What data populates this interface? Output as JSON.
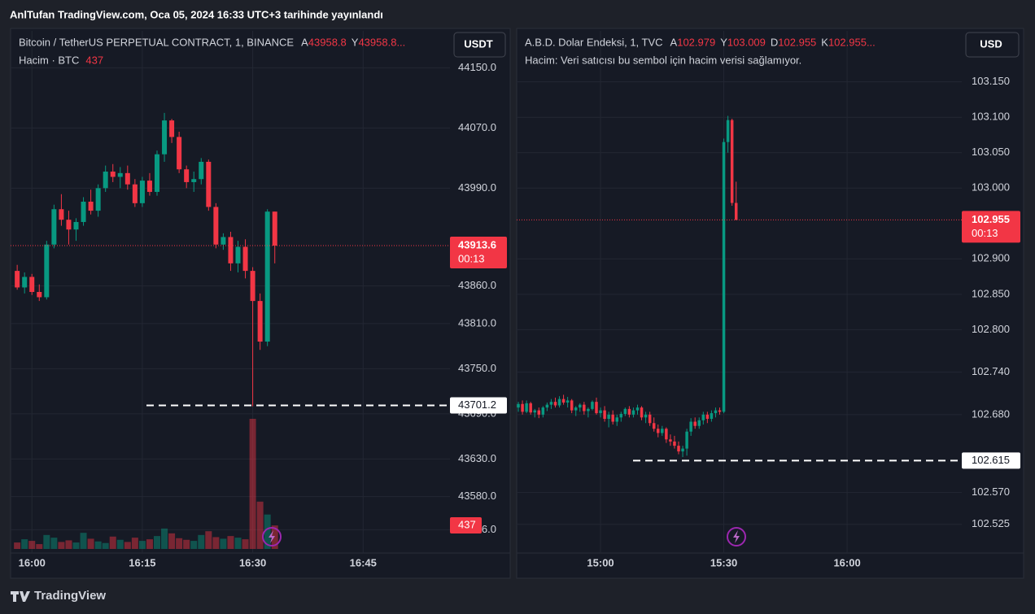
{
  "header": {
    "title": "AnlTufan TradingView.com, Oca 05, 2024 16:33 UTC+3 tarihinde yayınlandı"
  },
  "footer": {
    "brand": "TradingView"
  },
  "chart_data": [
    {
      "type": "candlestick",
      "title": "Bitcoin / TetherUS PERPETUAL CONTRACT, 1, BINANCE",
      "ohlc_legend": [
        {
          "label": "A",
          "value": "43958.8"
        },
        {
          "label": "Y",
          "value": "43958.8..."
        }
      ],
      "volume_label": "Hacim · BTC",
      "currency": "USDT",
      "up_color": "#089981",
      "down_color": "#f23645",
      "grid": true,
      "x": [
        958,
        959,
        960,
        961,
        962,
        963,
        964,
        965,
        966,
        967,
        968,
        969,
        970,
        971,
        972,
        973,
        974,
        975,
        976,
        977,
        978,
        979,
        980,
        981,
        982,
        983,
        984,
        985,
        986,
        987,
        988,
        989,
        990,
        991,
        992,
        993
      ],
      "open": [
        43880,
        43858,
        43872,
        43852,
        43845,
        43915,
        43962,
        43948,
        43935,
        43945,
        43972,
        43960,
        43990,
        44012,
        44005,
        44010,
        43995,
        43970,
        44000,
        43985,
        44035,
        44080,
        44058,
        44015,
        43998,
        44002,
        44025,
        43965,
        43915,
        43925,
        43890,
        43912,
        43880,
        43840,
        43786,
        43958.8
      ],
      "high": [
        43888,
        43878,
        43876,
        43862,
        43920,
        43968,
        43982,
        43960,
        43950,
        43978,
        43988,
        43995,
        44020,
        44022,
        44018,
        44020,
        44002,
        44005,
        44010,
        44040,
        44090,
        44082,
        44065,
        44020,
        44012,
        44030,
        44028,
        43970,
        43930,
        43932,
        43920,
        43922,
        43885,
        43850,
        43962,
        43958.8
      ],
      "low": [
        43855,
        43850,
        43848,
        43840,
        43842,
        43910,
        43940,
        43915,
        43920,
        43940,
        43955,
        43952,
        43985,
        43998,
        43990,
        43988,
        43965,
        43965,
        43980,
        43980,
        44025,
        44050,
        44010,
        43990,
        43985,
        43995,
        43960,
        43910,
        43908,
        43880,
        43878,
        43870,
        43700,
        43775,
        43780,
        43890
      ],
      "close": [
        43858,
        43872,
        43852,
        43845,
        43915,
        43962,
        43948,
        43935,
        43945,
        43972,
        43960,
        43990,
        44012,
        44005,
        44010,
        43995,
        43970,
        44000,
        43985,
        44035,
        44080,
        44058,
        44015,
        43998,
        44002,
        44025,
        43965,
        43915,
        43925,
        43890,
        43912,
        43880,
        43840,
        43786,
        43958.8,
        43913.6
      ],
      "volume": [
        120,
        180,
        150,
        90,
        260,
        210,
        130,
        160,
        120,
        300,
        190,
        140,
        110,
        230,
        170,
        130,
        210,
        150,
        180,
        240,
        380,
        290,
        200,
        170,
        150,
        260,
        330,
        220,
        190,
        240,
        210,
        180,
        2420,
        880,
        640,
        437
      ],
      "last_price": 43913.6,
      "countdown": "00:13",
      "level": 43701.2,
      "xlim": [
        957.1,
        1016.8
      ],
      "xticks": [
        {
          "value": 960,
          "label": "16:00"
        },
        {
          "value": 975,
          "label": "16:15"
        },
        {
          "value": 990,
          "label": "16:30"
        },
        {
          "value": 1005,
          "label": "16:45"
        }
      ],
      "ylim": [
        43505,
        44199
      ],
      "yticks": [
        {
          "value": 44150,
          "label": "44150.0"
        },
        {
          "value": 44070,
          "label": "44070.0"
        },
        {
          "value": 43990,
          "label": "43990.0"
        },
        {
          "value": 43860,
          "label": "43860.0"
        },
        {
          "value": 43810,
          "label": "43810.0"
        },
        {
          "value": 43750,
          "label": "43750.0"
        },
        {
          "value": 43690,
          "label": "43690.0"
        },
        {
          "value": 43630,
          "label": "43630.0"
        },
        {
          "value": 43580,
          "label": "43580.0"
        },
        {
          "value": 43536,
          "label": "43536.0"
        }
      ]
    },
    {
      "type": "candlestick",
      "title": "A.B.D. Dolar Endeksi, 1, TVC",
      "ohlc_legend": [
        {
          "label": "A",
          "value": "102.979"
        },
        {
          "label": "Y",
          "value": "103.009"
        },
        {
          "label": "D",
          "value": "102.955"
        },
        {
          "label": "K",
          "value": "102.955..."
        }
      ],
      "volume_note": "Hacim: Veri satıcısı bu sembol için hacim verisi sağlamıyor.",
      "currency": "USD",
      "up_color": "#089981",
      "down_color": "#f23645",
      "grid": true,
      "x": [
        880,
        881,
        882,
        883,
        884,
        885,
        886,
        887,
        888,
        889,
        890,
        891,
        892,
        893,
        894,
        895,
        896,
        897,
        898,
        899,
        900,
        901,
        902,
        903,
        904,
        905,
        906,
        907,
        908,
        909,
        910,
        911,
        912,
        913,
        914,
        915,
        916,
        917,
        918,
        919,
        920,
        921,
        922,
        923,
        924,
        925,
        926,
        927,
        928,
        929,
        930,
        931,
        932,
        933
      ],
      "open": [
        102.69,
        102.695,
        102.684,
        102.696,
        102.683,
        102.686,
        102.68,
        102.69,
        102.694,
        102.698,
        102.693,
        102.702,
        102.697,
        102.7,
        102.686,
        102.69,
        102.694,
        102.685,
        102.688,
        102.698,
        102.682,
        102.686,
        102.674,
        102.68,
        102.67,
        102.676,
        102.681,
        102.688,
        102.68,
        102.686,
        102.69,
        102.676,
        102.68,
        102.668,
        102.66,
        102.654,
        102.66,
        102.645,
        102.642,
        102.636,
        102.628,
        102.632,
        102.656,
        102.67,
        102.664,
        102.672,
        102.68,
        102.674,
        102.682,
        102.686,
        102.684,
        103.065,
        103.096,
        102.979
      ],
      "high": [
        102.698,
        102.7,
        102.7,
        102.698,
        102.688,
        102.69,
        102.692,
        102.697,
        102.702,
        102.704,
        102.706,
        102.708,
        102.705,
        102.702,
        102.692,
        102.696,
        102.698,
        102.69,
        102.7,
        102.704,
        102.69,
        102.692,
        102.684,
        102.686,
        102.68,
        102.684,
        102.69,
        102.692,
        102.69,
        102.694,
        102.692,
        102.684,
        102.684,
        102.676,
        102.666,
        102.664,
        102.662,
        102.652,
        102.65,
        102.642,
        102.636,
        102.66,
        102.675,
        102.676,
        102.676,
        102.684,
        102.684,
        102.686,
        102.69,
        102.69,
        103.07,
        103.102,
        103.098,
        103.009
      ],
      "low": [
        102.684,
        102.68,
        102.682,
        102.68,
        102.676,
        102.675,
        102.676,
        102.685,
        102.688,
        102.69,
        102.69,
        102.694,
        102.69,
        102.682,
        102.678,
        102.684,
        102.68,
        102.676,
        102.686,
        102.68,
        102.676,
        102.67,
        102.662,
        102.666,
        102.664,
        102.67,
        102.678,
        102.676,
        102.676,
        102.68,
        102.672,
        102.668,
        102.664,
        102.656,
        102.648,
        102.65,
        102.64,
        102.636,
        102.632,
        102.624,
        102.62,
        102.622,
        102.65,
        102.66,
        102.66,
        102.666,
        102.668,
        102.67,
        102.676,
        102.68,
        102.682,
        103.05,
        102.975,
        102.955
      ],
      "close": [
        102.695,
        102.684,
        102.696,
        102.683,
        102.686,
        102.68,
        102.69,
        102.694,
        102.698,
        102.693,
        102.702,
        102.697,
        102.7,
        102.686,
        102.69,
        102.694,
        102.685,
        102.688,
        102.698,
        102.682,
        102.686,
        102.674,
        102.68,
        102.67,
        102.676,
        102.681,
        102.688,
        102.68,
        102.686,
        102.69,
        102.676,
        102.68,
        102.668,
        102.66,
        102.654,
        102.66,
        102.645,
        102.642,
        102.636,
        102.628,
        102.632,
        102.656,
        102.67,
        102.664,
        102.672,
        102.68,
        102.674,
        102.682,
        102.686,
        102.684,
        103.065,
        103.096,
        102.979,
        102.955
      ],
      "last_price": 102.955,
      "countdown": "00:13",
      "level": 102.615,
      "xlim": [
        879.6,
        987.9
      ],
      "xticks": [
        {
          "value": 900,
          "label": "15:00"
        },
        {
          "value": 930,
          "label": "15:30"
        },
        {
          "value": 960,
          "label": "16:00"
        }
      ],
      "ylim": [
        102.4845,
        103.222
      ],
      "yticks": [
        {
          "value": 103.15,
          "label": "103.150"
        },
        {
          "value": 103.1,
          "label": "103.100"
        },
        {
          "value": 103.05,
          "label": "103.050"
        },
        {
          "value": 103,
          "label": "103.000"
        },
        {
          "value": 102.9,
          "label": "102.900"
        },
        {
          "value": 102.85,
          "label": "102.850"
        },
        {
          "value": 102.8,
          "label": "102.800"
        },
        {
          "value": 102.74,
          "label": "102.740"
        },
        {
          "value": 102.68,
          "label": "102.680"
        },
        {
          "value": 102.57,
          "label": "102.570"
        },
        102.525
      ]
    }
  ]
}
